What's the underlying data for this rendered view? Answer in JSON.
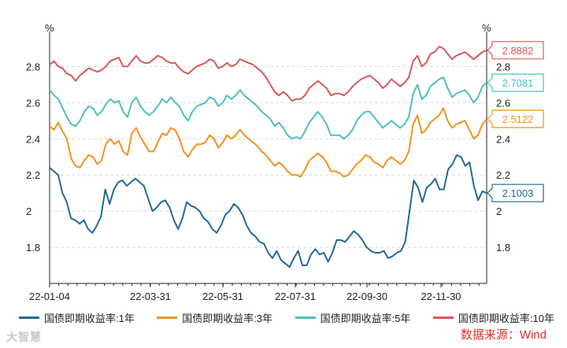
{
  "chart_data": {
    "type": "line",
    "title": "",
    "y_unit_left": "%",
    "y_unit_right": "%",
    "ylim": [
      1.6,
      2.95
    ],
    "yticks": [
      "1.8",
      "2",
      "2.2",
      "2.4",
      "2.6",
      "2.8"
    ],
    "yticks_right": [
      "1.8",
      "2",
      "2.2",
      "2.4",
      "2.6",
      "2.8"
    ],
    "xtick_labels": [
      "22-01-04",
      "22-03-31",
      "22-05-31",
      "22-07-31",
      "22-09-30",
      "22-11-30"
    ],
    "grid": true,
    "series": [
      {
        "name": "国债即期收益率:1年",
        "color": "#236996",
        "last_label": "2.1003",
        "values": [
          2.24,
          2.22,
          2.2,
          2.1,
          2.05,
          1.96,
          1.95,
          1.93,
          1.95,
          1.9,
          1.88,
          1.92,
          1.97,
          2.12,
          2.04,
          2.12,
          2.16,
          2.17,
          2.14,
          2.16,
          2.18,
          2.16,
          2.14,
          2.07,
          2.0,
          2.02,
          2.05,
          2.06,
          2.02,
          1.95,
          1.9,
          1.96,
          2.05,
          2.03,
          2.02,
          2.0,
          1.96,
          1.94,
          1.9,
          1.88,
          1.92,
          1.98,
          2.0,
          2.04,
          2.02,
          1.98,
          1.92,
          1.88,
          1.86,
          1.83,
          1.82,
          1.77,
          1.74,
          1.78,
          1.73,
          1.71,
          1.69,
          1.74,
          1.78,
          1.7,
          1.7,
          1.76,
          1.79,
          1.76,
          1.77,
          1.72,
          1.77,
          1.84,
          1.84,
          1.83,
          1.86,
          1.89,
          1.87,
          1.84,
          1.8,
          1.78,
          1.77,
          1.77,
          1.78,
          1.74,
          1.75,
          1.77,
          1.78,
          1.83,
          2.0,
          2.17,
          2.13,
          2.05,
          2.13,
          2.15,
          2.18,
          2.12,
          2.12,
          2.23,
          2.26,
          2.31,
          2.3,
          2.25,
          2.27,
          2.14,
          2.06,
          2.11,
          2.1
        ]
      },
      {
        "name": "国债即期收益率:3年",
        "color": "#f0931e",
        "last_label": "2.5122",
        "values": [
          2.47,
          2.45,
          2.49,
          2.44,
          2.4,
          2.29,
          2.25,
          2.24,
          2.28,
          2.31,
          2.3,
          2.26,
          2.28,
          2.37,
          2.4,
          2.37,
          2.39,
          2.33,
          2.31,
          2.43,
          2.46,
          2.41,
          2.37,
          2.33,
          2.33,
          2.38,
          2.43,
          2.42,
          2.46,
          2.45,
          2.4,
          2.33,
          2.3,
          2.34,
          2.37,
          2.37,
          2.38,
          2.42,
          2.4,
          2.35,
          2.38,
          2.42,
          2.4,
          2.42,
          2.45,
          2.42,
          2.4,
          2.38,
          2.36,
          2.33,
          2.31,
          2.28,
          2.25,
          2.27,
          2.25,
          2.22,
          2.2,
          2.2,
          2.19,
          2.23,
          2.28,
          2.3,
          2.32,
          2.3,
          2.27,
          2.22,
          2.22,
          2.21,
          2.19,
          2.2,
          2.23,
          2.26,
          2.28,
          2.31,
          2.3,
          2.27,
          2.26,
          2.24,
          2.28,
          2.3,
          2.28,
          2.26,
          2.28,
          2.33,
          2.48,
          2.53,
          2.43,
          2.45,
          2.49,
          2.51,
          2.53,
          2.57,
          2.5,
          2.46,
          2.48,
          2.49,
          2.5,
          2.45,
          2.4,
          2.42,
          2.48,
          2.51
        ]
      },
      {
        "name": "国债即期收益率:5年",
        "color": "#4fbfbf",
        "last_label": "2.7081",
        "values": [
          2.67,
          2.64,
          2.62,
          2.57,
          2.52,
          2.48,
          2.47,
          2.5,
          2.55,
          2.58,
          2.57,
          2.53,
          2.55,
          2.59,
          2.62,
          2.6,
          2.61,
          2.55,
          2.52,
          2.6,
          2.63,
          2.58,
          2.55,
          2.53,
          2.55,
          2.58,
          2.62,
          2.6,
          2.63,
          2.6,
          2.58,
          2.53,
          2.5,
          2.55,
          2.58,
          2.59,
          2.6,
          2.63,
          2.62,
          2.58,
          2.6,
          2.64,
          2.62,
          2.64,
          2.67,
          2.64,
          2.62,
          2.6,
          2.58,
          2.55,
          2.53,
          2.51,
          2.47,
          2.49,
          2.46,
          2.42,
          2.4,
          2.41,
          2.4,
          2.44,
          2.49,
          2.52,
          2.55,
          2.52,
          2.48,
          2.42,
          2.42,
          2.42,
          2.4,
          2.42,
          2.45,
          2.5,
          2.53,
          2.55,
          2.55,
          2.52,
          2.49,
          2.46,
          2.48,
          2.5,
          2.48,
          2.46,
          2.48,
          2.52,
          2.65,
          2.7,
          2.62,
          2.64,
          2.69,
          2.71,
          2.73,
          2.74,
          2.68,
          2.63,
          2.65,
          2.66,
          2.67,
          2.64,
          2.6,
          2.63,
          2.69,
          2.71
        ]
      },
      {
        "name": "国债即期收益率:10年",
        "color": "#d9595a",
        "last_label": "2.8882",
        "values": [
          2.81,
          2.83,
          2.8,
          2.79,
          2.76,
          2.75,
          2.72,
          2.75,
          2.77,
          2.79,
          2.78,
          2.77,
          2.78,
          2.8,
          2.83,
          2.84,
          2.85,
          2.8,
          2.8,
          2.83,
          2.86,
          2.83,
          2.82,
          2.82,
          2.84,
          2.86,
          2.85,
          2.83,
          2.82,
          2.82,
          2.79,
          2.77,
          2.76,
          2.78,
          2.8,
          2.81,
          2.82,
          2.84,
          2.83,
          2.79,
          2.8,
          2.82,
          2.8,
          2.81,
          2.84,
          2.83,
          2.82,
          2.81,
          2.79,
          2.77,
          2.74,
          2.7,
          2.66,
          2.64,
          2.66,
          2.64,
          2.61,
          2.62,
          2.62,
          2.64,
          2.68,
          2.7,
          2.72,
          2.7,
          2.68,
          2.64,
          2.65,
          2.65,
          2.64,
          2.66,
          2.69,
          2.71,
          2.73,
          2.74,
          2.75,
          2.73,
          2.71,
          2.68,
          2.7,
          2.73,
          2.71,
          2.69,
          2.71,
          2.74,
          2.83,
          2.86,
          2.8,
          2.82,
          2.87,
          2.88,
          2.91,
          2.9,
          2.87,
          2.84,
          2.86,
          2.87,
          2.88,
          2.86,
          2.84,
          2.86,
          2.88,
          2.89
        ]
      }
    ]
  },
  "legend": {
    "items": [
      {
        "label": "国债即期收益率:1年",
        "color": "#236996"
      },
      {
        "label": "国债即期收益率:3年",
        "color": "#f0931e"
      },
      {
        "label": "国债即期收益率:5年",
        "color": "#4fbfbf"
      },
      {
        "label": "国债即期收益率:10年",
        "color": "#d9595a"
      }
    ]
  },
  "footer": {
    "watermark": "大智慧",
    "source": "数据来源：Wind"
  }
}
